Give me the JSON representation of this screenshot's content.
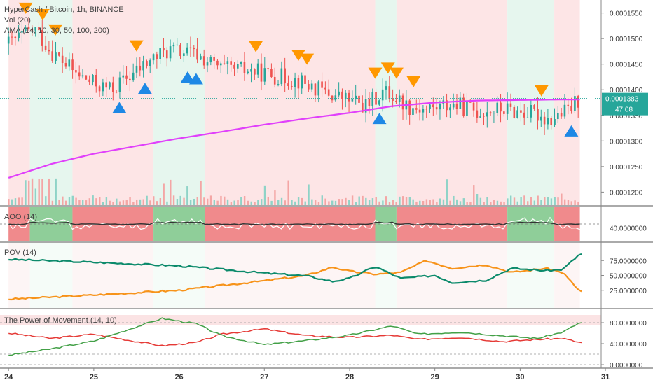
{
  "colors": {
    "up": "#26a69a",
    "down": "#ef5350",
    "ama": "#e040fb",
    "bg_up": "#e6f6ee",
    "bg_down": "#fde5e6",
    "arrow_up": "#1e88e5",
    "arrow_down": "#ff9800",
    "pov_bull": "#0b8a6b",
    "pov_bear": "#f7931a",
    "pom_a": "#e53935",
    "pom_b": "#43a047",
    "price_tag": "#26a69a"
  },
  "header": {
    "title": "HyperCash / Bitcoin, 1h, BINANCE",
    "vol": "Vol (20)",
    "ama": "AMA (14, 10, 30, 50, 100, 200)"
  },
  "price_panel": {
    "yticks": [
      "0.0001550",
      "0.0001500",
      "0.0001450",
      "0.0001400",
      "0.0001350",
      "0.0001300",
      "0.0001250",
      "0.0001200"
    ],
    "last_price": "0.0001383",
    "countdown": "47:08"
  },
  "aoo_panel": {
    "title": "AOO (14)",
    "yticks": [
      "40.0000000"
    ]
  },
  "pov_panel": {
    "title": "POV (14)",
    "yticks": [
      "75.0000000",
      "50.0000000",
      "25.0000000"
    ]
  },
  "pom_panel": {
    "title": "The Power of Movement (14, 10)",
    "yticks": [
      "80.0000000",
      "40.0000000",
      "0.0000000"
    ]
  },
  "xaxis": {
    "ticks": [
      "24",
      "25",
      "26",
      "27",
      "28",
      "29",
      "30",
      "31"
    ]
  },
  "chart_data": {
    "type": "candlestick",
    "interval": "1h",
    "ylim": [
      0.000118,
      0.000157
    ],
    "ama_series": [
      {
        "day": 24.0,
        "value": 0.0001228
      },
      {
        "day": 24.5,
        "value": 0.0001255
      },
      {
        "day": 25.0,
        "value": 0.0001275
      },
      {
        "day": 25.5,
        "value": 0.000129
      },
      {
        "day": 26.0,
        "value": 0.0001305
      },
      {
        "day": 26.5,
        "value": 0.0001318
      },
      {
        "day": 27.0,
        "value": 0.0001332
      },
      {
        "day": 27.5,
        "value": 0.0001344
      },
      {
        "day": 28.0,
        "value": 0.0001355
      },
      {
        "day": 28.5,
        "value": 0.0001368
      },
      {
        "day": 29.0,
        "value": 0.0001375
      },
      {
        "day": 29.5,
        "value": 0.0001379
      },
      {
        "day": 30.0,
        "value": 0.000138
      },
      {
        "day": 30.5,
        "value": 0.0001381
      },
      {
        "day": 30.7,
        "value": 0.0001381
      }
    ],
    "price_path": [
      {
        "day": 24.0,
        "value": 0.000149
      },
      {
        "day": 24.3,
        "value": 0.000152
      },
      {
        "day": 24.5,
        "value": 0.0001475
      },
      {
        "day": 24.8,
        "value": 0.000143
      },
      {
        "day": 25.0,
        "value": 0.0001412
      },
      {
        "day": 25.2,
        "value": 0.00014
      },
      {
        "day": 25.45,
        "value": 0.000143
      },
      {
        "day": 25.7,
        "value": 0.0001462
      },
      {
        "day": 25.9,
        "value": 0.0001478
      },
      {
        "day": 26.2,
        "value": 0.0001468
      },
      {
        "day": 26.5,
        "value": 0.000144
      },
      {
        "day": 26.8,
        "value": 0.0001438
      },
      {
        "day": 27.0,
        "value": 0.0001432
      },
      {
        "day": 27.4,
        "value": 0.0001418
      },
      {
        "day": 27.7,
        "value": 0.0001395
      },
      {
        "day": 28.0,
        "value": 0.000138
      },
      {
        "day": 28.2,
        "value": 0.0001368
      },
      {
        "day": 28.4,
        "value": 0.0001398
      },
      {
        "day": 28.7,
        "value": 0.0001368
      },
      {
        "day": 28.9,
        "value": 0.0001362
      },
      {
        "day": 29.2,
        "value": 0.0001372
      },
      {
        "day": 29.5,
        "value": 0.0001358
      },
      {
        "day": 29.8,
        "value": 0.0001362
      },
      {
        "day": 30.2,
        "value": 0.0001352
      },
      {
        "day": 30.35,
        "value": 0.0001342
      },
      {
        "day": 30.55,
        "value": 0.0001358
      },
      {
        "day": 30.7,
        "value": 0.0001383
      }
    ],
    "signals_up": [
      25.3,
      25.6,
      26.1,
      26.2,
      28.35,
      30.6
    ],
    "signals_down": [
      24.2,
      24.4,
      24.55,
      25.5,
      26.9,
      27.4,
      27.5,
      28.3,
      28.45,
      28.55,
      28.75,
      30.25
    ],
    "pov": {
      "bull": [
        {
          "day": 24.0,
          "value": 77
        },
        {
          "day": 25.0,
          "value": 72
        },
        {
          "day": 26.0,
          "value": 66
        },
        {
          "day": 26.5,
          "value": 60
        },
        {
          "day": 27.0,
          "value": 54
        },
        {
          "day": 27.5,
          "value": 49
        },
        {
          "day": 27.8,
          "value": 40
        },
        {
          "day": 28.0,
          "value": 45
        },
        {
          "day": 28.3,
          "value": 65
        },
        {
          "day": 28.6,
          "value": 45
        },
        {
          "day": 29.0,
          "value": 50
        },
        {
          "day": 29.2,
          "value": 38
        },
        {
          "day": 29.6,
          "value": 42
        },
        {
          "day": 29.9,
          "value": 62
        },
        {
          "day": 30.3,
          "value": 58
        },
        {
          "day": 30.5,
          "value": 60
        },
        {
          "day": 30.7,
          "value": 86
        }
      ],
      "bear": [
        {
          "day": 24.0,
          "value": 10
        },
        {
          "day": 25.0,
          "value": 17
        },
        {
          "day": 26.0,
          "value": 25
        },
        {
          "day": 26.5,
          "value": 33
        },
        {
          "day": 27.0,
          "value": 41
        },
        {
          "day": 27.5,
          "value": 50
        },
        {
          "day": 27.8,
          "value": 64
        },
        {
          "day": 28.0,
          "value": 57
        },
        {
          "day": 28.3,
          "value": 52
        },
        {
          "day": 28.6,
          "value": 55
        },
        {
          "day": 28.9,
          "value": 75
        },
        {
          "day": 29.2,
          "value": 62
        },
        {
          "day": 29.6,
          "value": 68
        },
        {
          "day": 29.9,
          "value": 55
        },
        {
          "day": 30.3,
          "value": 62
        },
        {
          "day": 30.5,
          "value": 55
        },
        {
          "day": 30.7,
          "value": 23
        }
      ]
    },
    "pom": {
      "series_a": [
        {
          "day": 24.0,
          "value": 60
        },
        {
          "day": 24.5,
          "value": 50
        },
        {
          "day": 25.0,
          "value": 58
        },
        {
          "day": 25.5,
          "value": 44
        },
        {
          "day": 25.8,
          "value": 36
        },
        {
          "day": 26.2,
          "value": 42
        },
        {
          "day": 26.5,
          "value": 58
        },
        {
          "day": 27.0,
          "value": 68
        },
        {
          "day": 27.5,
          "value": 55
        },
        {
          "day": 28.0,
          "value": 52
        },
        {
          "day": 28.5,
          "value": 56
        },
        {
          "day": 28.8,
          "value": 48
        },
        {
          "day": 29.3,
          "value": 52
        },
        {
          "day": 29.8,
          "value": 44
        },
        {
          "day": 30.2,
          "value": 48
        },
        {
          "day": 30.5,
          "value": 50
        },
        {
          "day": 30.7,
          "value": 42
        }
      ],
      "series_b": [
        {
          "day": 24.0,
          "value": 18
        },
        {
          "day": 24.5,
          "value": 30
        },
        {
          "day": 25.0,
          "value": 45
        },
        {
          "day": 25.5,
          "value": 72
        },
        {
          "day": 25.8,
          "value": 88
        },
        {
          "day": 26.2,
          "value": 78
        },
        {
          "day": 26.5,
          "value": 55
        },
        {
          "day": 27.0,
          "value": 38
        },
        {
          "day": 27.5,
          "value": 46
        },
        {
          "day": 28.0,
          "value": 56
        },
        {
          "day": 28.5,
          "value": 74
        },
        {
          "day": 28.8,
          "value": 58
        },
        {
          "day": 29.3,
          "value": 62
        },
        {
          "day": 29.8,
          "value": 55
        },
        {
          "day": 30.2,
          "value": 50
        },
        {
          "day": 30.5,
          "value": 62
        },
        {
          "day": 30.7,
          "value": 80
        }
      ]
    },
    "regime": [
      {
        "start": 24.0,
        "end": 24.25,
        "state": "down"
      },
      {
        "start": 24.25,
        "end": 24.75,
        "state": "up"
      },
      {
        "start": 24.75,
        "end": 25.7,
        "state": "down"
      },
      {
        "start": 25.7,
        "end": 26.3,
        "state": "up"
      },
      {
        "start": 26.3,
        "end": 28.3,
        "state": "down"
      },
      {
        "start": 28.3,
        "end": 28.55,
        "state": "up"
      },
      {
        "start": 28.55,
        "end": 29.85,
        "state": "down"
      },
      {
        "start": 29.85,
        "end": 30.4,
        "state": "up"
      },
      {
        "start": 30.4,
        "end": 30.7,
        "state": "down"
      }
    ]
  }
}
